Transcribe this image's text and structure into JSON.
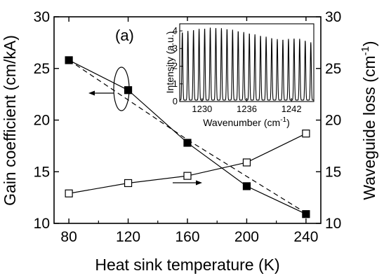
{
  "chart_data": [
    {
      "type": "line",
      "panel_label": "(a)",
      "xlabel": "Heat sink temperature (K)",
      "ylabel_left": "Gain coefficient (cm/kA)",
      "ylabel_right": "Waveguide loss (cm",
      "ylabel_right_sup": "-1",
      "ylabel_right_end": ")",
      "xlim": [
        70,
        250
      ],
      "ylim_left": [
        10,
        30
      ],
      "ylim_right": [
        10,
        30
      ],
      "xticks": [
        "80",
        "120",
        "160",
        "200",
        "240"
      ],
      "yticks_left": [
        "10",
        "15",
        "20",
        "25",
        "30"
      ],
      "yticks_right": [
        "10",
        "15",
        "20",
        "25",
        "30"
      ],
      "series": [
        {
          "axis": "left",
          "marker": "filled-square",
          "x": [
            80,
            120,
            160,
            200,
            240
          ],
          "values": [
            25.8,
            22.9,
            17.8,
            13.6,
            10.9
          ]
        },
        {
          "axis": "left",
          "style": "dashed-fit",
          "x": [
            80,
            160,
            240
          ],
          "values": [
            25.8,
            18.1,
            11.0
          ]
        },
        {
          "axis": "right",
          "marker": "open-square",
          "x": [
            80,
            120,
            160,
            200,
            240
          ],
          "values": [
            12.9,
            13.9,
            14.6,
            15.9,
            18.7
          ]
        }
      ]
    },
    {
      "type": "line",
      "role": "inset",
      "xlabel": "Wavenumber (cm",
      "xlabel_sup": "-1",
      "xlabel_end": ")",
      "ylabel": "Intensity (a.u.)",
      "xlim": [
        1227,
        1245
      ],
      "ylim": [
        0,
        4.4
      ],
      "xticks": [
        "1230",
        "1236",
        "1242"
      ],
      "yticks": [
        "0",
        "1",
        "2",
        "3",
        "4"
      ],
      "peak_spacing": 0.75,
      "peak_maxima": [
        3.9,
        4.1,
        4.2,
        4.1,
        3.9,
        3.7,
        3.5,
        3.6,
        3.3
      ]
    }
  ]
}
